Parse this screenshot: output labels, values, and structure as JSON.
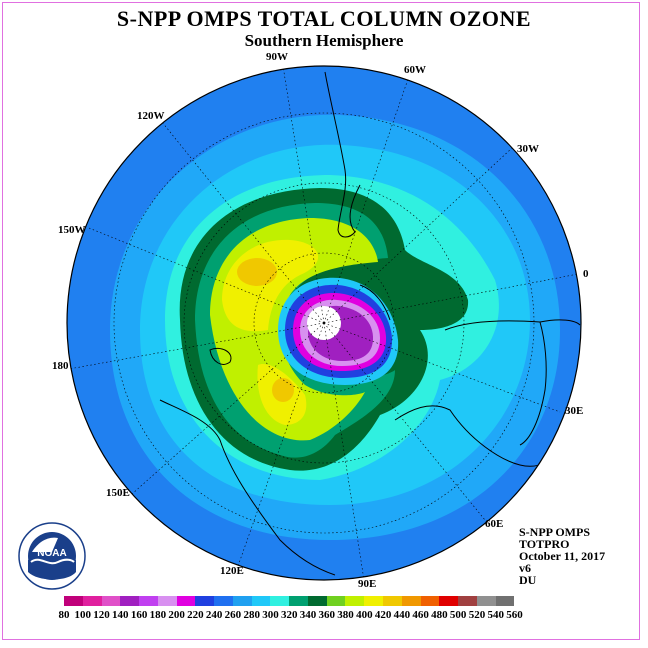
{
  "title": "S-NPP OMPS TOTAL COLUMN OZONE",
  "subtitle": "Southern Hemisphere",
  "longitude_labels": {
    "l90w": "90W",
    "l60w": "60W",
    "l120w": "120W",
    "l30w": "30W",
    "l150w": "150W",
    "l0": "0",
    "l180": "180",
    "l30e": "30E",
    "l150e": "150E",
    "l60e": "60E",
    "l120e": "120E",
    "l90e": "90E"
  },
  "info": {
    "instrument": "S-NPP OMPS",
    "product": "TOTPRO",
    "date": "October 11, 2017",
    "version": "v6",
    "units": "DU"
  },
  "logo": {
    "name": "noaa-logo",
    "text": "NOAA",
    "ring_text": "NATIONAL OCEANIC AND ATMOSPHERIC ADMINISTRATION · U.S. DEPARTMENT OF COMMERCE"
  },
  "colorbar": {
    "ticks": [
      "80",
      "100",
      "120",
      "140",
      "160",
      "180",
      "200",
      "220",
      "240",
      "260",
      "280",
      "300",
      "320",
      "340",
      "360",
      "380",
      "400",
      "420",
      "440",
      "460",
      "480",
      "500",
      "520",
      "540",
      "560"
    ],
    "colors": [
      "#c0007a",
      "#e0209e",
      "#e050c8",
      "#a020c0",
      "#c040f0",
      "#d890f0",
      "#e000e0",
      "#2040e0",
      "#2070f0",
      "#20a0f0",
      "#20c8f8",
      "#30f0e0",
      "#00a070",
      "#006a30",
      "#70d020",
      "#c0f000",
      "#f0f000",
      "#f0c800",
      "#f09800",
      "#f06000",
      "#e00000",
      "#a04040",
      "#909090",
      "#707070"
    ]
  }
}
